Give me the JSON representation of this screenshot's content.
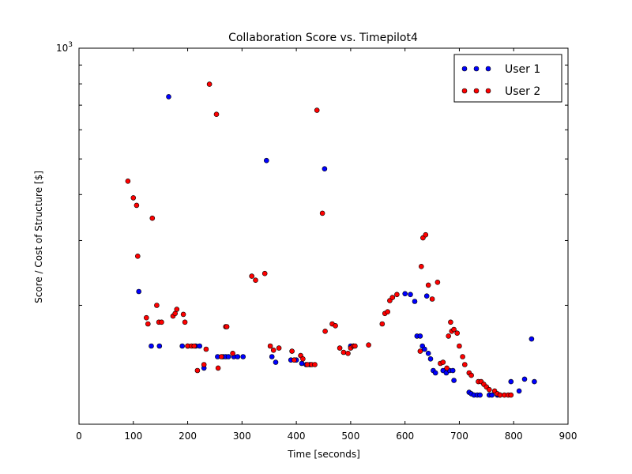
{
  "chart_data": {
    "type": "scatter",
    "title": "Collaboration Score vs. Timepilot4",
    "xlabel": "Time [seconds]",
    "ylabel": "Score / Cost of Structure [$]",
    "xlim": [
      0,
      900
    ],
    "ylim": [
      95,
      1000
    ],
    "yscale": "log",
    "xticks": [
      0,
      100,
      200,
      300,
      400,
      500,
      600,
      700,
      800,
      900
    ],
    "yticks": [
      1000
    ],
    "ytick_labels": [
      "10^3"
    ],
    "grid": false,
    "legend_position": "top-right",
    "series": [
      {
        "name": "User 1",
        "color": "#0000ff",
        "points": [
          [
            110,
            218
          ],
          [
            133,
            155
          ],
          [
            148,
            155
          ],
          [
            165,
            738
          ],
          [
            190,
            155
          ],
          [
            200,
            155
          ],
          [
            215,
            155
          ],
          [
            222,
            155
          ],
          [
            230,
            135
          ],
          [
            255,
            145
          ],
          [
            265,
            145
          ],
          [
            270,
            145
          ],
          [
            275,
            145
          ],
          [
            285,
            145
          ],
          [
            292,
            145
          ],
          [
            302,
            145
          ],
          [
            345,
            495
          ],
          [
            355,
            145
          ],
          [
            362,
            140
          ],
          [
            390,
            142
          ],
          [
            400,
            142
          ],
          [
            410,
            139
          ],
          [
            418,
            138
          ],
          [
            425,
            138
          ],
          [
            452,
            470
          ],
          [
            500,
            155
          ],
          [
            505,
            155
          ],
          [
            600,
            215
          ],
          [
            610,
            214
          ],
          [
            618,
            205
          ],
          [
            622,
            165
          ],
          [
            628,
            165
          ],
          [
            632,
            155
          ],
          [
            636,
            152
          ],
          [
            640,
            212
          ],
          [
            643,
            148
          ],
          [
            647,
            143
          ],
          [
            652,
            133
          ],
          [
            656,
            131
          ],
          [
            670,
            133
          ],
          [
            676,
            131
          ],
          [
            682,
            133
          ],
          [
            688,
            133
          ],
          [
            690,
            125
          ],
          [
            718,
            116
          ],
          [
            722,
            115
          ],
          [
            727,
            114
          ],
          [
            733,
            114
          ],
          [
            738,
            114
          ],
          [
            755,
            114
          ],
          [
            760,
            114
          ],
          [
            770,
            114
          ],
          [
            775,
            114
          ],
          [
            795,
            124
          ],
          [
            810,
            117
          ],
          [
            820,
            126
          ],
          [
            833,
            162
          ],
          [
            838,
            124
          ]
        ]
      },
      {
        "name": "User 2",
        "color": "#ff0000",
        "points": [
          [
            90,
            435
          ],
          [
            100,
            392
          ],
          [
            106,
            374
          ],
          [
            108,
            272
          ],
          [
            124,
            185
          ],
          [
            127,
            178
          ],
          [
            135,
            345
          ],
          [
            143,
            200
          ],
          [
            147,
            180
          ],
          [
            152,
            180
          ],
          [
            173,
            187
          ],
          [
            177,
            190
          ],
          [
            180,
            195
          ],
          [
            192,
            189
          ],
          [
            195,
            180
          ],
          [
            200,
            155
          ],
          [
            207,
            155
          ],
          [
            212,
            155
          ],
          [
            218,
            133
          ],
          [
            230,
            138
          ],
          [
            234,
            152
          ],
          [
            240,
            798
          ],
          [
            253,
            661
          ],
          [
            256,
            135
          ],
          [
            262,
            145
          ],
          [
            270,
            175
          ],
          [
            272,
            175
          ],
          [
            283,
            148
          ],
          [
            318,
            240
          ],
          [
            325,
            234
          ],
          [
            342,
            244
          ],
          [
            352,
            155
          ],
          [
            358,
            151
          ],
          [
            368,
            153
          ],
          [
            392,
            150
          ],
          [
            396,
            142
          ],
          [
            408,
            146
          ],
          [
            412,
            143
          ],
          [
            420,
            138
          ],
          [
            428,
            138
          ],
          [
            434,
            138
          ],
          [
            438,
            678
          ],
          [
            453,
            170
          ],
          [
            448,
            356
          ],
          [
            466,
            178
          ],
          [
            472,
            176
          ],
          [
            480,
            153
          ],
          [
            487,
            149
          ],
          [
            495,
            148
          ],
          [
            500,
            153
          ],
          [
            505,
            155
          ],
          [
            508,
            155
          ],
          [
            533,
            156
          ],
          [
            558,
            178
          ],
          [
            563,
            190
          ],
          [
            568,
            192
          ],
          [
            572,
            206
          ],
          [
            577,
            210
          ],
          [
            585,
            214
          ],
          [
            628,
            150
          ],
          [
            630,
            255
          ],
          [
            633,
            305
          ],
          [
            638,
            311
          ],
          [
            643,
            227
          ],
          [
            650,
            208
          ],
          [
            660,
            231
          ],
          [
            665,
            139
          ],
          [
            670,
            140
          ],
          [
            677,
            135
          ],
          [
            680,
            165
          ],
          [
            684,
            180
          ],
          [
            686,
            170
          ],
          [
            690,
            172
          ],
          [
            696,
            168
          ],
          [
            700,
            155
          ],
          [
            706,
            145
          ],
          [
            710,
            138
          ],
          [
            718,
            131
          ],
          [
            722,
            129
          ],
          [
            735,
            124
          ],
          [
            740,
            124
          ],
          [
            745,
            122
          ],
          [
            750,
            120
          ],
          [
            755,
            118
          ],
          [
            765,
            117
          ],
          [
            770,
            115
          ],
          [
            775,
            114
          ],
          [
            783,
            114
          ],
          [
            790,
            114
          ],
          [
            795,
            114
          ]
        ]
      }
    ]
  }
}
